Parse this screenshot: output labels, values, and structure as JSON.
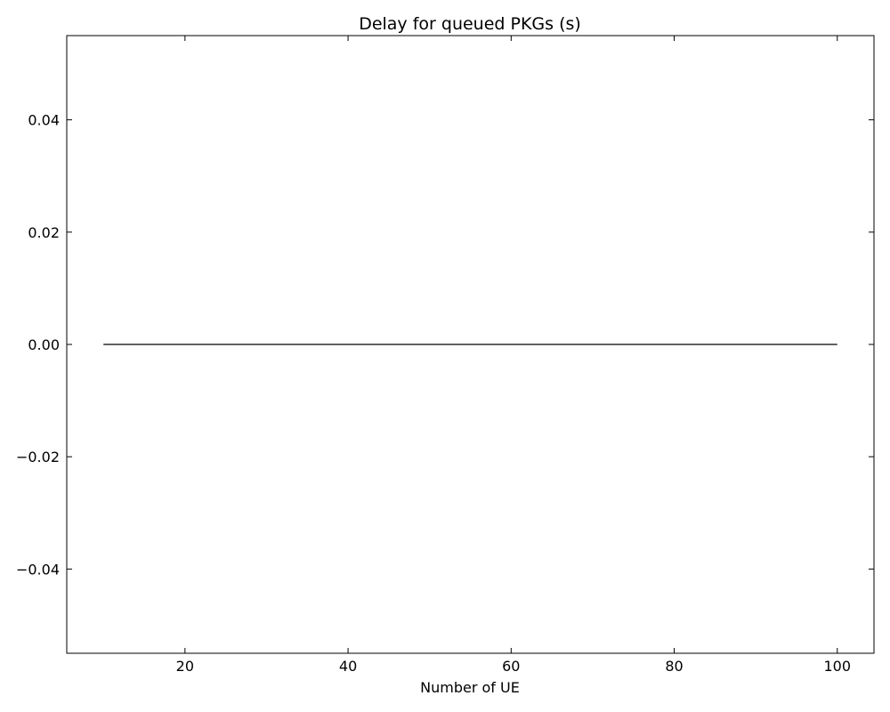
{
  "chart_data": {
    "type": "line",
    "title": "Delay for queued PKGs (s)",
    "xlabel": "Number of UE",
    "ylabel": "",
    "xlim": [
      5.5,
      104.5
    ],
    "ylim": [
      -0.055,
      0.055
    ],
    "xticks": [
      20,
      40,
      60,
      80,
      100
    ],
    "yticks": [
      -0.04,
      -0.02,
      0.0,
      0.02,
      0.04
    ],
    "xtick_labels": [
      "20",
      "40",
      "60",
      "80",
      "100"
    ],
    "ytick_labels": [
      "−0.04",
      "−0.02",
      "0.00",
      "0.02",
      "0.04"
    ],
    "grid": false,
    "series": [
      {
        "x": [
          10,
          100
        ],
        "y": [
          0,
          0
        ],
        "color": "#000000"
      }
    ]
  }
}
